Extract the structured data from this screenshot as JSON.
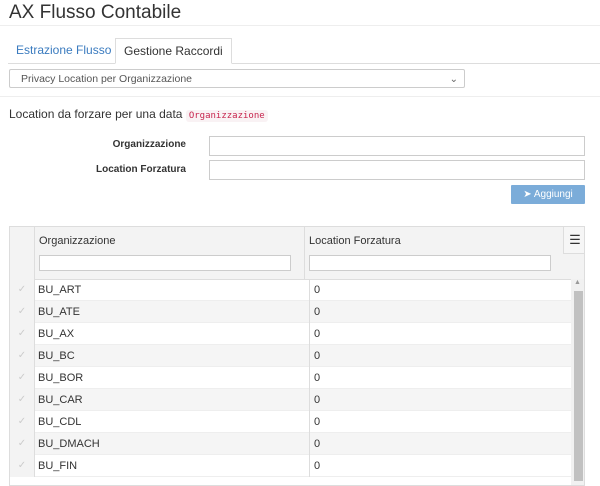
{
  "title": "AX Flusso Contabile",
  "tabs": [
    {
      "label": "Estrazione Flusso",
      "active": false
    },
    {
      "label": "Gestione Raccordi",
      "active": true
    }
  ],
  "select": {
    "value": "Privacy Location per Organizzazione"
  },
  "intro": {
    "text": "Location da forzare per una data",
    "code": "Organizzazione"
  },
  "form": {
    "org_label": "Organizzazione",
    "org_value": "",
    "loc_label": "Location Forzatura",
    "loc_value": "",
    "add_button": "Aggiungi"
  },
  "grid": {
    "columns": [
      "Organizzazione",
      "Location Forzatura"
    ],
    "rows": [
      [
        "BU_ART",
        "0"
      ],
      [
        "BU_ATE",
        "0"
      ],
      [
        "BU_AX",
        "0"
      ],
      [
        "BU_BC",
        "0"
      ],
      [
        "BU_BOR",
        "0"
      ],
      [
        "BU_CAR",
        "0"
      ],
      [
        "BU_CDL",
        "0"
      ],
      [
        "BU_DMACH",
        "0"
      ],
      [
        "BU_FIN",
        "0"
      ]
    ]
  },
  "colors": {
    "accent": "#3a7bbf",
    "button": "#7bacd9",
    "code": "#c7254e"
  }
}
